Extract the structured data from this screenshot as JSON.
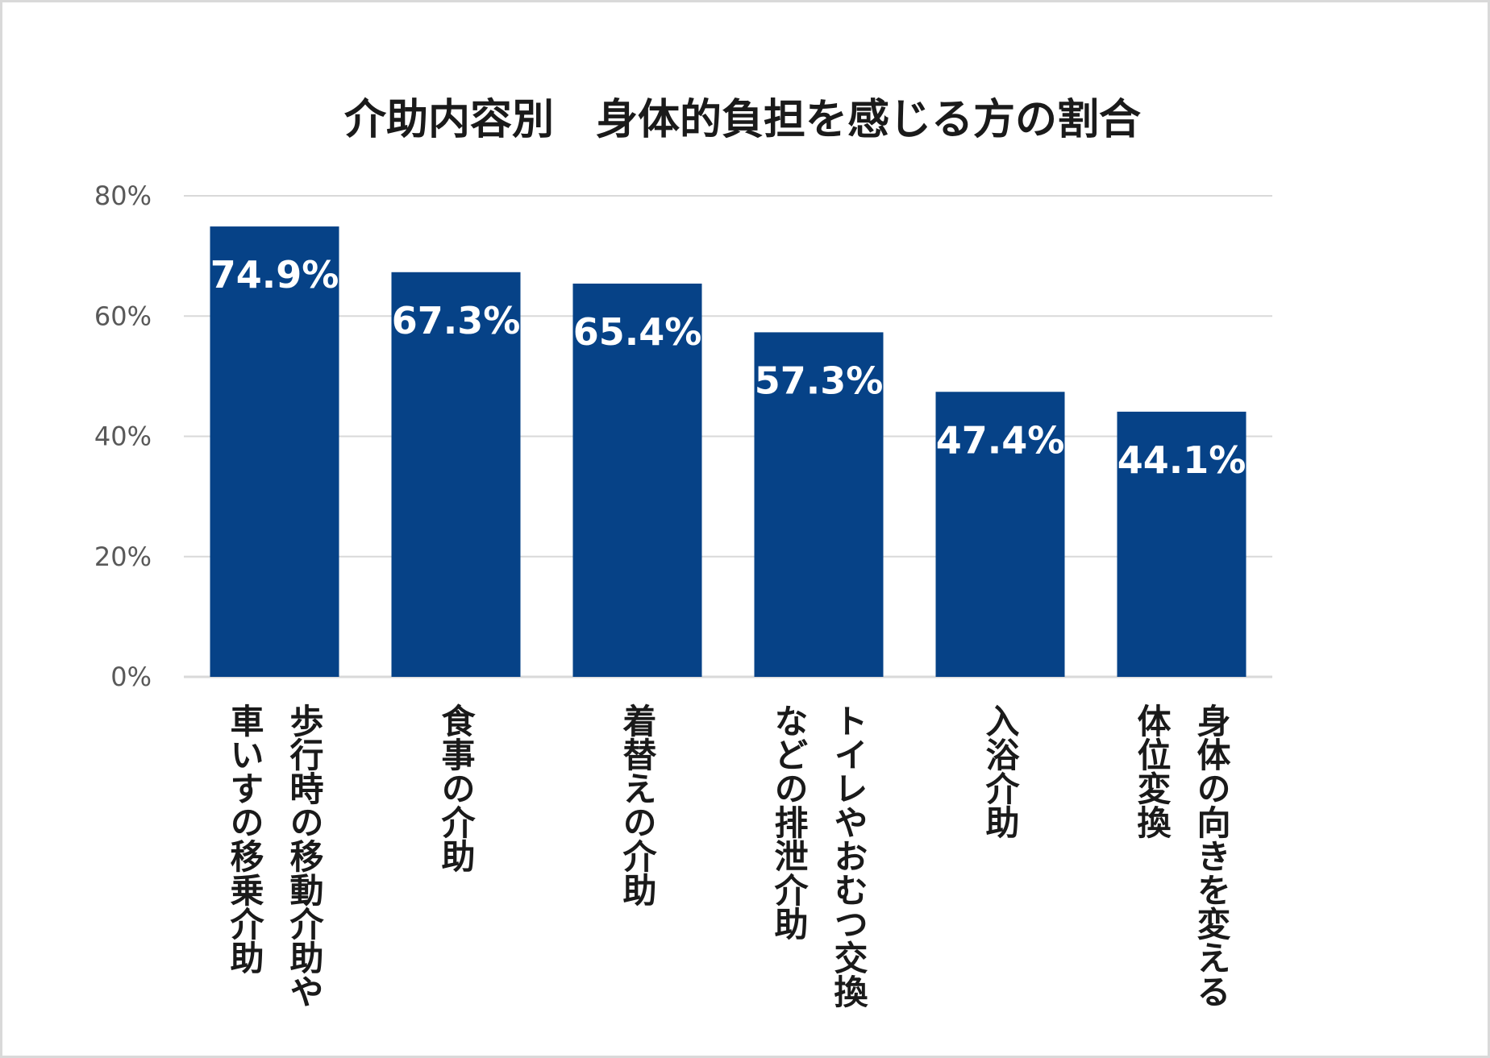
{
  "chart_data": {
    "type": "bar",
    "title": "介助内容別　身体的負担を感じる方の割合",
    "categories": [
      [
        "歩行時の移動介助や",
        "車いすの移乗介助"
      ],
      [
        "食事の介助"
      ],
      [
        "着替えの介助"
      ],
      [
        "トイレやおむつ交換",
        "などの排泄介助"
      ],
      [
        "入浴介助"
      ],
      [
        "身体の向きを変える",
        "体位変換"
      ]
    ],
    "values": [
      74.9,
      67.3,
      65.4,
      57.3,
      47.4,
      44.1
    ],
    "data_labels": [
      "74.9%",
      "67.3%",
      "65.4%",
      "57.3%",
      "47.4%",
      "44.1%"
    ],
    "y_ticks": [
      0,
      20,
      40,
      60,
      80
    ],
    "y_tick_labels": [
      "0%",
      "20%",
      "40%",
      "60%",
      "80%"
    ],
    "ylim": [
      0,
      80
    ],
    "xlabel": "",
    "ylabel": "",
    "grid": true,
    "legend": "none",
    "bar_color": "#064287",
    "grid_color": "#d9d9d9"
  }
}
